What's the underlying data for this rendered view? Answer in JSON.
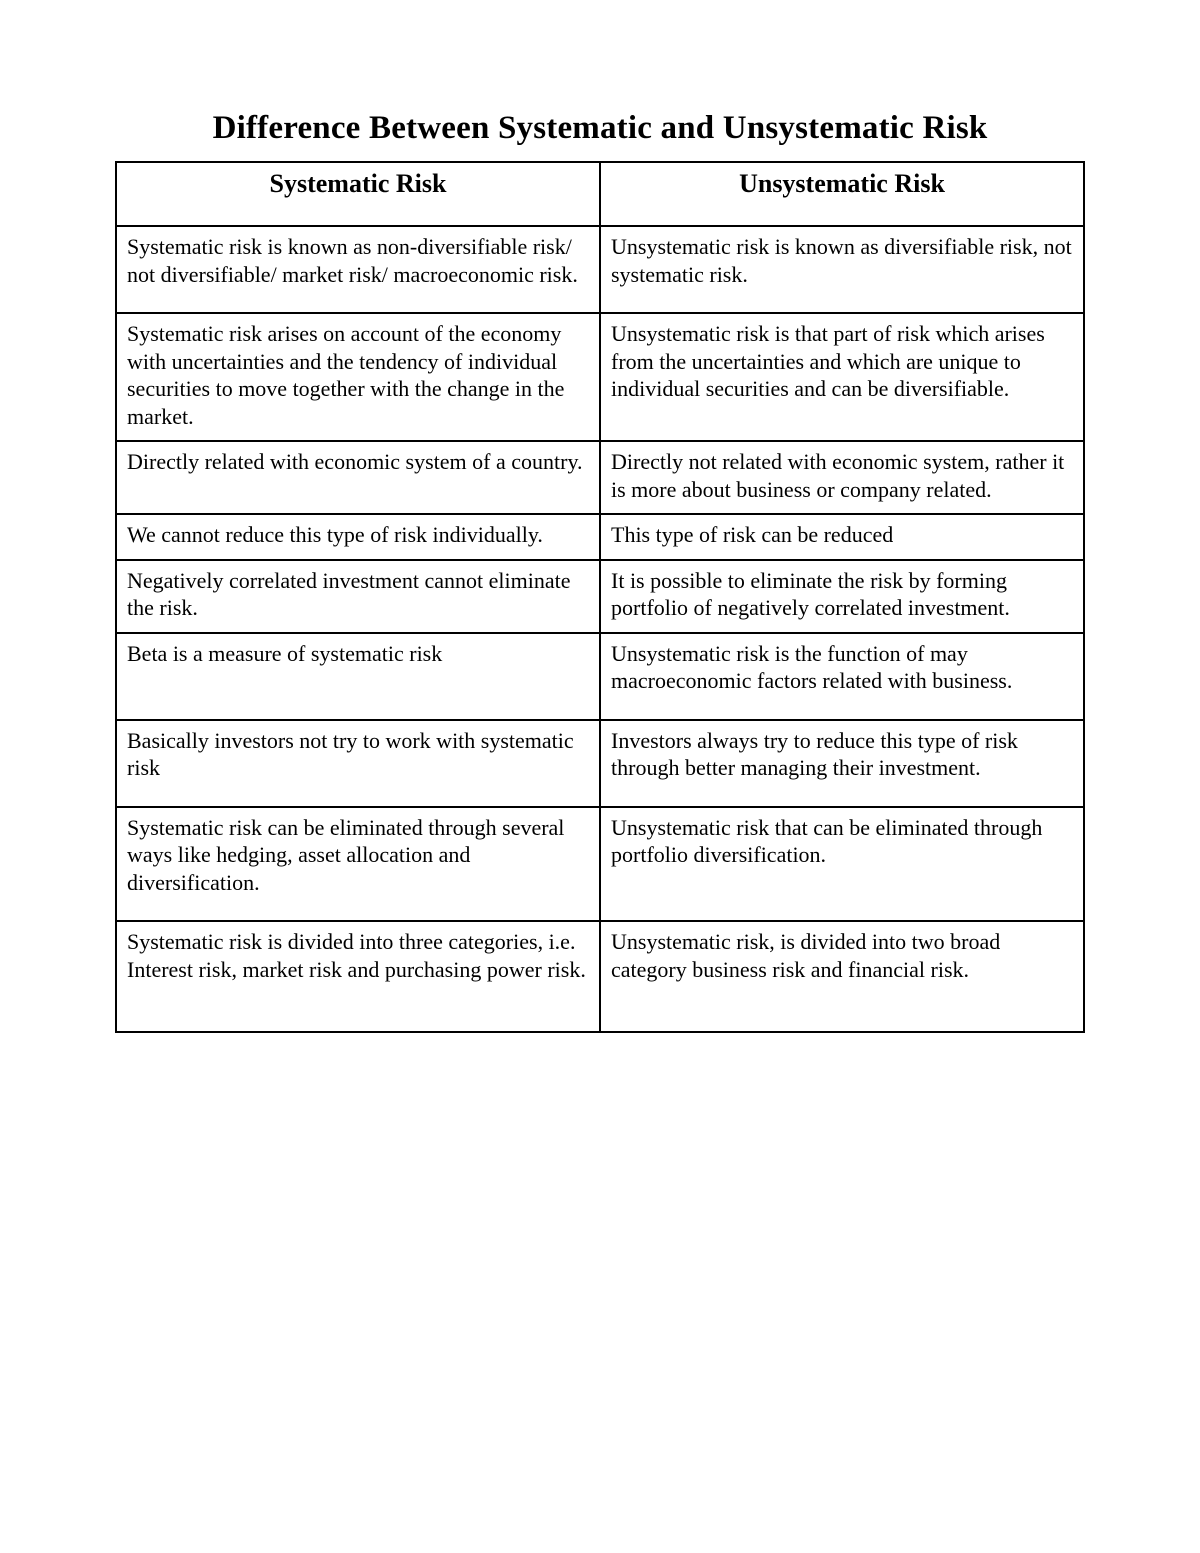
{
  "title": "Difference Between Systematic and Unsystematic Risk",
  "table": {
    "type": "table",
    "columns": [
      "Systematic Risk",
      "Unsystematic Risk"
    ],
    "column_widths_pct": [
      50,
      50
    ],
    "border_color": "#000000",
    "background_color": "#ffffff",
    "text_color": "#000000",
    "header_fontsize_pt": 20,
    "body_fontsize_pt": 16,
    "rows": [
      {
        "left": "Systematic risk is known as non-diversifiable risk/ not diversifiable/ market risk/ macroeconomic risk.",
        "right": "Unsystematic risk is known as diversifiable risk, not systematic risk.",
        "pad": "md"
      },
      {
        "left": "Systematic risk arises on account of the economy with uncertainties and the tendency of individual securities to move together with the change in the market.",
        "right": "Unsystematic risk is that part of risk which arises from the uncertainties and which are unique to individual securities and can be diversifiable.",
        "pad": "sm"
      },
      {
        "left": "Directly related with economic system of a country.",
        "right": "Directly not related with economic system, rather it is more about business or company related.",
        "pad": "sm"
      },
      {
        "left": "We cannot reduce this type of risk individually.",
        "right": "This type of risk can be reduced",
        "pad": "sm"
      },
      {
        "left": "Negatively correlated investment cannot eliminate the risk.",
        "right": "It is possible to eliminate the risk by forming portfolio of negatively correlated investment.",
        "pad": "sm"
      },
      {
        "left": "Beta is a measure of systematic risk",
        "right": "Unsystematic risk is the function of may macroeconomic factors related with business.",
        "pad": "md"
      },
      {
        "left": "Basically investors not try to work with systematic risk",
        "right": "Investors always try to reduce this type of risk through better managing their investment.",
        "pad": "md"
      },
      {
        "left": "Systematic risk can be eliminated through several ways like hedging, asset allocation and diversification.",
        "right": "Unsystematic risk that can be eliminated through portfolio diversification.",
        "pad": "md"
      },
      {
        "left": "Systematic risk is divided into three categories, i.e. Interest risk, market risk and purchasing power risk.",
        "right": "Unsystematic risk, is divided into two broad category business risk and financial risk.",
        "pad": "lg"
      }
    ]
  }
}
